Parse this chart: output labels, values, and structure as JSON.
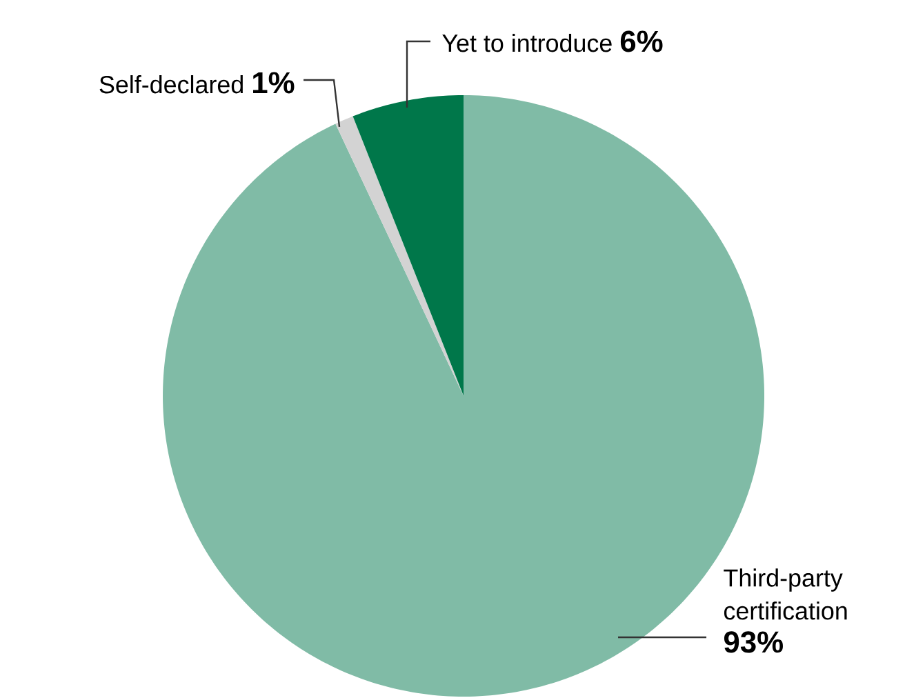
{
  "chart_data": {
    "type": "pie",
    "categories": [
      "Third-party certification",
      "Self-declared",
      "Yet to introduce"
    ],
    "values": [
      93,
      1,
      6
    ],
    "value_labels": [
      "93%",
      "1%",
      "6%"
    ],
    "colors": [
      "#80bba6",
      "#d3d3d3",
      "#00774a"
    ]
  }
}
